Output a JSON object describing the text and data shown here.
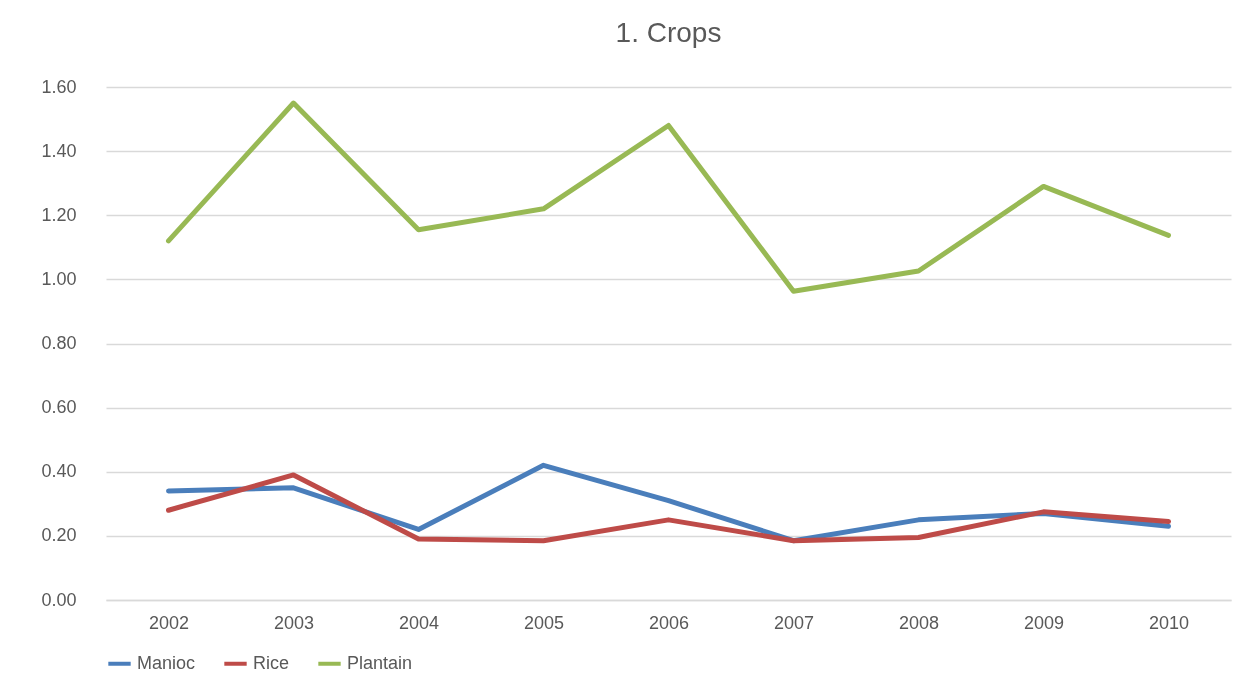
{
  "chart_data": {
    "type": "line",
    "title": "1. Crops",
    "categories": [
      "2002",
      "2003",
      "2004",
      "2005",
      "2006",
      "2007",
      "2008",
      "2009",
      "2010"
    ],
    "series": [
      {
        "name": "Manioc",
        "color": "#4a7ebb",
        "values": [
          0.34,
          0.35,
          0.22,
          0.42,
          0.31,
          0.185,
          0.25,
          0.27,
          0.23
        ]
      },
      {
        "name": "Rice",
        "color": "#be4b48",
        "values": [
          0.28,
          0.39,
          0.19,
          0.185,
          0.25,
          0.185,
          0.195,
          0.275,
          0.245
        ]
      },
      {
        "name": "Plantain",
        "color": "#98b954",
        "values": [
          1.12,
          1.55,
          1.155,
          1.22,
          1.48,
          0.963,
          1.026,
          1.29,
          1.137
        ]
      }
    ],
    "ylim": [
      0,
      1.6
    ],
    "yticks": [
      {
        "value": 0,
        "label": "0.00"
      },
      {
        "value": 0.2,
        "label": "0.20"
      },
      {
        "value": 0.4,
        "label": "0.40"
      },
      {
        "value": 0.6,
        "label": "0.60"
      },
      {
        "value": 0.8,
        "label": "0.80"
      },
      {
        "value": 1,
        "label": "1.00"
      },
      {
        "value": 1.2,
        "label": "1.20"
      },
      {
        "value": 1.4,
        "label": "1.40"
      },
      {
        "value": 1.6,
        "label": "1.60"
      }
    ],
    "grid": "y",
    "legend": "bottom",
    "marker": "none",
    "line_style": "solid"
  }
}
